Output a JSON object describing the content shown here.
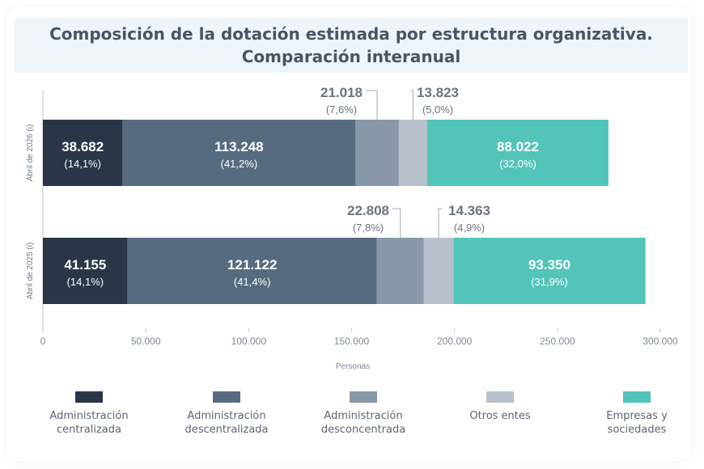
{
  "title_lines": [
    "Composición de la dotación estimada por estructura organizativa.",
    "Comparación interanual"
  ],
  "chart_data": {
    "type": "bar",
    "orientation": "horizontal",
    "stacked": true,
    "title": "Composición de la dotación estimada por estructura organizativa. Comparación interanual",
    "xlabel": "Personas",
    "xlim": [
      0,
      300000
    ],
    "xticks": [
      "0",
      "50.000",
      "100.000",
      "150.000",
      "200.000",
      "250.000",
      "300.000"
    ],
    "categories": [
      "Abril de 2026 (i)",
      "Abril de 2025 (i)"
    ],
    "series": [
      {
        "name": "Administración centralizada",
        "color": "#2a3648",
        "values": [
          38682,
          41155
        ],
        "labels": [
          "38.682",
          "41.155"
        ],
        "pct": [
          "(14,1%)",
          "(14,1%)"
        ]
      },
      {
        "name": "Administración descentralizada",
        "color": "#566b80",
        "values": [
          113248,
          121122
        ],
        "labels": [
          "113.248",
          "121.122"
        ],
        "pct": [
          "(41,2%)",
          "(41,4%)"
        ]
      },
      {
        "name": "Administración desconcentrada",
        "color": "#8998a8",
        "values": [
          21018,
          22808
        ],
        "labels": [
          "21.018",
          "22.808"
        ],
        "pct": [
          "(7,6%)",
          "(7,8%)"
        ]
      },
      {
        "name": "Otros entes",
        "color": "#b8c1cb",
        "values": [
          13823,
          14363
        ],
        "labels": [
          "13.823",
          "14.363"
        ],
        "pct": [
          "(5,0%)",
          "(4,9%)"
        ]
      },
      {
        "name": "Empresas y sociedades",
        "color": "#52c4b9",
        "values": [
          88022,
          93350
        ],
        "labels": [
          "88.022",
          "93.350"
        ],
        "pct": [
          "(32,0%)",
          "(31,9%)"
        ]
      }
    ],
    "legend": {
      "position": "bottom",
      "labels": [
        "Administración\ncentralizada",
        "Administración\ndescentralizada",
        "Administración\ndesconcentrada",
        "Otros entes",
        "Empresas y\nsociedades"
      ]
    },
    "grid": false
  }
}
